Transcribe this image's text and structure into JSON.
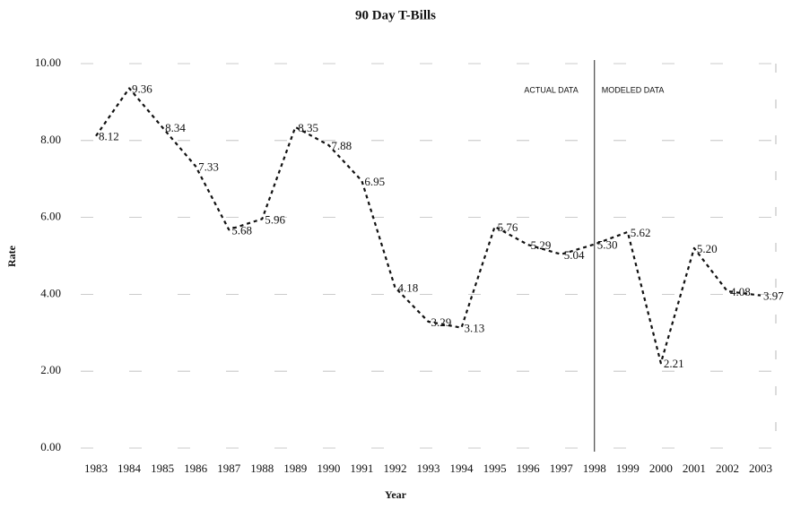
{
  "chart_data": {
    "type": "line",
    "title": "90 Day T-Bills",
    "x_label": "Year",
    "y_label": "Rate",
    "categories": [
      "1983",
      "1984",
      "1985",
      "1986",
      "1987",
      "1988",
      "1989",
      "1990",
      "1991",
      "1992",
      "1993",
      "1994",
      "1995",
      "1996",
      "1997",
      "1998",
      "1999",
      "2000",
      "2001",
      "2002",
      "2003"
    ],
    "series": [
      {
        "name": "90 Day T-Bills",
        "color": "#111111",
        "values": [
          8.12,
          9.36,
          8.34,
          7.33,
          5.68,
          5.96,
          8.35,
          7.88,
          6.95,
          4.18,
          3.29,
          3.13,
          5.76,
          5.29,
          5.04,
          5.3,
          5.62,
          2.21,
          5.2,
          4.08,
          3.97
        ],
        "value_labels": [
          "8.12",
          "9.36",
          "8.34",
          "7.33",
          "5.68",
          "5.96",
          "8.35",
          "7.88",
          "6.95",
          "4.18",
          "3.29",
          "3.13",
          "5.76",
          "5.29",
          "5.04",
          "5.30",
          "5.62",
          "2.21",
          "5.20",
          "4.08",
          "3.97"
        ]
      }
    ],
    "ylim": [
      0,
      10
    ],
    "yticks": [
      {
        "value": 0,
        "label": "0.00"
      },
      {
        "value": 2,
        "label": "2.00"
      },
      {
        "value": 4,
        "label": "4.00"
      },
      {
        "value": 6,
        "label": "6.00"
      },
      {
        "value": 8,
        "label": "8.00"
      },
      {
        "value": 10,
        "label": "10.00"
      }
    ],
    "grid": true,
    "annotations": [
      "ACTUAL DATA",
      "MODELED DATA"
    ]
  }
}
